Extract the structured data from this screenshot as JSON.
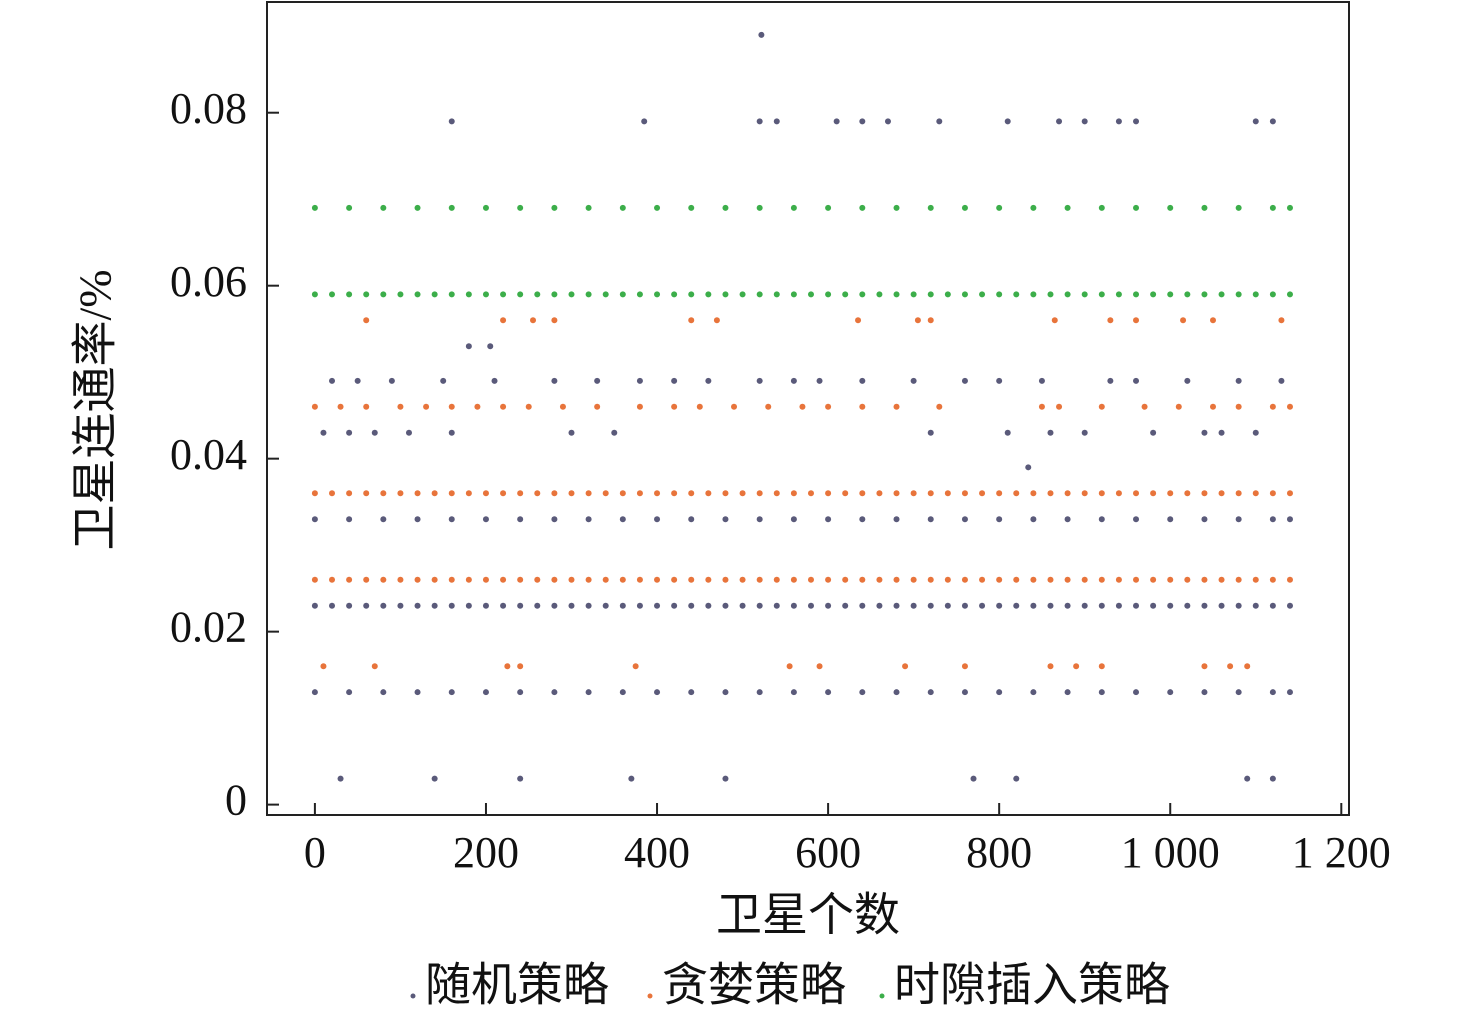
{
  "chart_data": {
    "type": "scatter",
    "x_label": "卫星个数",
    "y_label": "卫星连通率/%",
    "xlim": [
      -56,
      1209
    ],
    "ylim": [
      -0.0012,
      0.0928
    ],
    "xticks": [
      0,
      200,
      400,
      600,
      800,
      {
        "value": 1000,
        "label": "1 000"
      },
      {
        "value": 1200,
        "label": "1 200"
      }
    ],
    "yticks": [
      0,
      0.02,
      0.04,
      0.06,
      0.08
    ],
    "series": [
      {
        "name": "随机策略",
        "color": "#5a5a7a",
        "x": [
          0,
          20,
          40,
          60,
          80,
          100,
          120,
          140,
          160,
          180,
          200,
          220,
          240,
          260,
          280,
          300,
          320,
          340,
          360,
          380,
          400,
          420,
          440,
          460,
          480,
          500,
          520,
          540,
          560,
          580,
          600,
          620,
          640,
          660,
          680,
          700,
          720,
          740,
          760,
          780,
          800,
          820,
          840,
          860,
          880,
          900,
          920,
          940,
          960,
          980,
          1000,
          1020,
          1040,
          1060,
          1080,
          1100,
          1120,
          1140,
          0,
          40,
          80,
          120,
          160,
          200,
          240,
          280,
          320,
          360,
          400,
          440,
          480,
          520,
          560,
          600,
          640,
          680,
          720,
          760,
          800,
          840,
          880,
          920,
          960,
          1000,
          1040,
          1080,
          1120,
          1140,
          0,
          40,
          80,
          120,
          160,
          200,
          240,
          280,
          320,
          360,
          400,
          440,
          480,
          520,
          560,
          600,
          640,
          680,
          720,
          760,
          800,
          840,
          880,
          920,
          960,
          1000,
          1040,
          1080,
          1120,
          1140,
          20,
          50,
          90,
          150,
          210,
          280,
          330,
          380,
          420,
          460,
          520,
          560,
          590,
          640,
          700,
          760,
          800,
          850,
          930,
          960,
          1020,
          1080,
          1130,
          10,
          40,
          70,
          110,
          160,
          300,
          350,
          720,
          810,
          860,
          900,
          980,
          1040,
          1060,
          1100,
          30,
          140,
          240,
          370,
          480,
          770,
          820,
          1090,
          1120,
          160,
          385,
          520,
          540,
          610,
          640,
          670,
          730,
          810,
          870,
          900,
          940,
          960,
          1100,
          1120,
          522,
          180,
          205,
          834
        ],
        "values": [
          0.023,
          0.023,
          0.023,
          0.023,
          0.023,
          0.023,
          0.023,
          0.023,
          0.023,
          0.023,
          0.023,
          0.023,
          0.023,
          0.023,
          0.023,
          0.023,
          0.023,
          0.023,
          0.023,
          0.023,
          0.023,
          0.023,
          0.023,
          0.023,
          0.023,
          0.023,
          0.023,
          0.023,
          0.023,
          0.023,
          0.023,
          0.023,
          0.023,
          0.023,
          0.023,
          0.023,
          0.023,
          0.023,
          0.023,
          0.023,
          0.023,
          0.023,
          0.023,
          0.023,
          0.023,
          0.023,
          0.023,
          0.023,
          0.023,
          0.023,
          0.023,
          0.023,
          0.023,
          0.023,
          0.023,
          0.023,
          0.023,
          0.023,
          0.033,
          0.033,
          0.033,
          0.033,
          0.033,
          0.033,
          0.033,
          0.033,
          0.033,
          0.033,
          0.033,
          0.033,
          0.033,
          0.033,
          0.033,
          0.033,
          0.033,
          0.033,
          0.033,
          0.033,
          0.033,
          0.033,
          0.033,
          0.033,
          0.033,
          0.033,
          0.033,
          0.033,
          0.033,
          0.033,
          0.013,
          0.013,
          0.013,
          0.013,
          0.013,
          0.013,
          0.013,
          0.013,
          0.013,
          0.013,
          0.013,
          0.013,
          0.013,
          0.013,
          0.013,
          0.013,
          0.013,
          0.013,
          0.013,
          0.013,
          0.013,
          0.013,
          0.013,
          0.013,
          0.013,
          0.013,
          0.013,
          0.013,
          0.013,
          0.013,
          0.049,
          0.049,
          0.049,
          0.049,
          0.049,
          0.049,
          0.049,
          0.049,
          0.049,
          0.049,
          0.049,
          0.049,
          0.049,
          0.049,
          0.049,
          0.049,
          0.049,
          0.049,
          0.049,
          0.049,
          0.049,
          0.049,
          0.049,
          0.043,
          0.043,
          0.043,
          0.043,
          0.043,
          0.043,
          0.043,
          0.043,
          0.043,
          0.043,
          0.043,
          0.043,
          0.043,
          0.043,
          0.043,
          0.003,
          0.003,
          0.003,
          0.003,
          0.003,
          0.003,
          0.003,
          0.003,
          0.003,
          0.079,
          0.079,
          0.079,
          0.079,
          0.079,
          0.079,
          0.079,
          0.079,
          0.079,
          0.079,
          0.079,
          0.079,
          0.079,
          0.079,
          0.079,
          0.089,
          0.053,
          0.053,
          0.039
        ]
      },
      {
        "name": "贪婪策略",
        "color": "#e8743b",
        "x": [
          0,
          20,
          40,
          60,
          80,
          100,
          120,
          140,
          160,
          180,
          200,
          220,
          240,
          260,
          280,
          300,
          320,
          340,
          360,
          380,
          400,
          420,
          440,
          460,
          480,
          500,
          520,
          540,
          560,
          580,
          600,
          620,
          640,
          660,
          680,
          700,
          720,
          740,
          760,
          780,
          800,
          820,
          840,
          860,
          880,
          900,
          920,
          940,
          960,
          980,
          1000,
          1020,
          1040,
          1060,
          1080,
          1100,
          1120,
          1140,
          0,
          20,
          40,
          60,
          80,
          100,
          120,
          140,
          160,
          180,
          200,
          220,
          240,
          260,
          280,
          300,
          320,
          340,
          360,
          380,
          400,
          420,
          440,
          460,
          480,
          500,
          520,
          540,
          560,
          580,
          600,
          620,
          640,
          660,
          680,
          700,
          720,
          740,
          760,
          780,
          800,
          820,
          840,
          860,
          880,
          900,
          920,
          940,
          960,
          980,
          1000,
          1020,
          1040,
          1060,
          1080,
          1100,
          1120,
          1140,
          0,
          30,
          60,
          100,
          130,
          160,
          190,
          220,
          250,
          290,
          330,
          380,
          420,
          450,
          490,
          530,
          570,
          600,
          640,
          680,
          730,
          850,
          870,
          920,
          970,
          1010,
          1050,
          1080,
          1120,
          1140,
          10,
          70,
          225,
          240,
          375,
          555,
          590,
          690,
          760,
          860,
          890,
          920,
          1040,
          1070,
          1090,
          60,
          220,
          255,
          280,
          440,
          470,
          635,
          705,
          720,
          865,
          930,
          960,
          1015,
          1050,
          1130
        ],
        "values": [
          0.036,
          0.036,
          0.036,
          0.036,
          0.036,
          0.036,
          0.036,
          0.036,
          0.036,
          0.036,
          0.036,
          0.036,
          0.036,
          0.036,
          0.036,
          0.036,
          0.036,
          0.036,
          0.036,
          0.036,
          0.036,
          0.036,
          0.036,
          0.036,
          0.036,
          0.036,
          0.036,
          0.036,
          0.036,
          0.036,
          0.036,
          0.036,
          0.036,
          0.036,
          0.036,
          0.036,
          0.036,
          0.036,
          0.036,
          0.036,
          0.036,
          0.036,
          0.036,
          0.036,
          0.036,
          0.036,
          0.036,
          0.036,
          0.036,
          0.036,
          0.036,
          0.036,
          0.036,
          0.036,
          0.036,
          0.036,
          0.036,
          0.036,
          0.026,
          0.026,
          0.026,
          0.026,
          0.026,
          0.026,
          0.026,
          0.026,
          0.026,
          0.026,
          0.026,
          0.026,
          0.026,
          0.026,
          0.026,
          0.026,
          0.026,
          0.026,
          0.026,
          0.026,
          0.026,
          0.026,
          0.026,
          0.026,
          0.026,
          0.026,
          0.026,
          0.026,
          0.026,
          0.026,
          0.026,
          0.026,
          0.026,
          0.026,
          0.026,
          0.026,
          0.026,
          0.026,
          0.026,
          0.026,
          0.026,
          0.026,
          0.026,
          0.026,
          0.026,
          0.026,
          0.026,
          0.026,
          0.026,
          0.026,
          0.026,
          0.026,
          0.026,
          0.026,
          0.026,
          0.026,
          0.026,
          0.026,
          0.046,
          0.046,
          0.046,
          0.046,
          0.046,
          0.046,
          0.046,
          0.046,
          0.046,
          0.046,
          0.046,
          0.046,
          0.046,
          0.046,
          0.046,
          0.046,
          0.046,
          0.046,
          0.046,
          0.046,
          0.046,
          0.046,
          0.046,
          0.046,
          0.046,
          0.046,
          0.046,
          0.046,
          0.046,
          0.046,
          0.016,
          0.016,
          0.016,
          0.016,
          0.016,
          0.016,
          0.016,
          0.016,
          0.016,
          0.016,
          0.016,
          0.016,
          0.016,
          0.016,
          0.016,
          0.056,
          0.056,
          0.056,
          0.056,
          0.056,
          0.056,
          0.056,
          0.056,
          0.056,
          0.056,
          0.056,
          0.056,
          0.056,
          0.056,
          0.056
        ]
      },
      {
        "name": "时隙插入策略",
        "color": "#3cae4a",
        "x": [
          0,
          20,
          40,
          60,
          80,
          100,
          120,
          140,
          160,
          180,
          200,
          220,
          240,
          260,
          280,
          300,
          320,
          340,
          360,
          380,
          400,
          420,
          440,
          460,
          480,
          500,
          520,
          540,
          560,
          580,
          600,
          620,
          640,
          660,
          680,
          700,
          720,
          740,
          760,
          780,
          800,
          820,
          840,
          860,
          880,
          900,
          920,
          940,
          960,
          980,
          1000,
          1020,
          1040,
          1060,
          1080,
          1100,
          1120,
          1140,
          0,
          40,
          80,
          120,
          160,
          200,
          240,
          280,
          320,
          360,
          400,
          440,
          480,
          520,
          560,
          600,
          640,
          680,
          720,
          760,
          800,
          840,
          880,
          920,
          960,
          1000,
          1040,
          1080,
          1120,
          1140
        ],
        "values": [
          0.059,
          0.059,
          0.059,
          0.059,
          0.059,
          0.059,
          0.059,
          0.059,
          0.059,
          0.059,
          0.059,
          0.059,
          0.059,
          0.059,
          0.059,
          0.059,
          0.059,
          0.059,
          0.059,
          0.059,
          0.059,
          0.059,
          0.059,
          0.059,
          0.059,
          0.059,
          0.059,
          0.059,
          0.059,
          0.059,
          0.059,
          0.059,
          0.059,
          0.059,
          0.059,
          0.059,
          0.059,
          0.059,
          0.059,
          0.059,
          0.059,
          0.059,
          0.059,
          0.059,
          0.059,
          0.059,
          0.059,
          0.059,
          0.059,
          0.059,
          0.059,
          0.059,
          0.059,
          0.059,
          0.059,
          0.059,
          0.059,
          0.059,
          0.069,
          0.069,
          0.069,
          0.069,
          0.069,
          0.069,
          0.069,
          0.069,
          0.069,
          0.069,
          0.069,
          0.069,
          0.069,
          0.069,
          0.069,
          0.069,
          0.069,
          0.069,
          0.069,
          0.069,
          0.069,
          0.069,
          0.069,
          0.069,
          0.069,
          0.069,
          0.069,
          0.069,
          0.069,
          0.069
        ]
      }
    ]
  }
}
